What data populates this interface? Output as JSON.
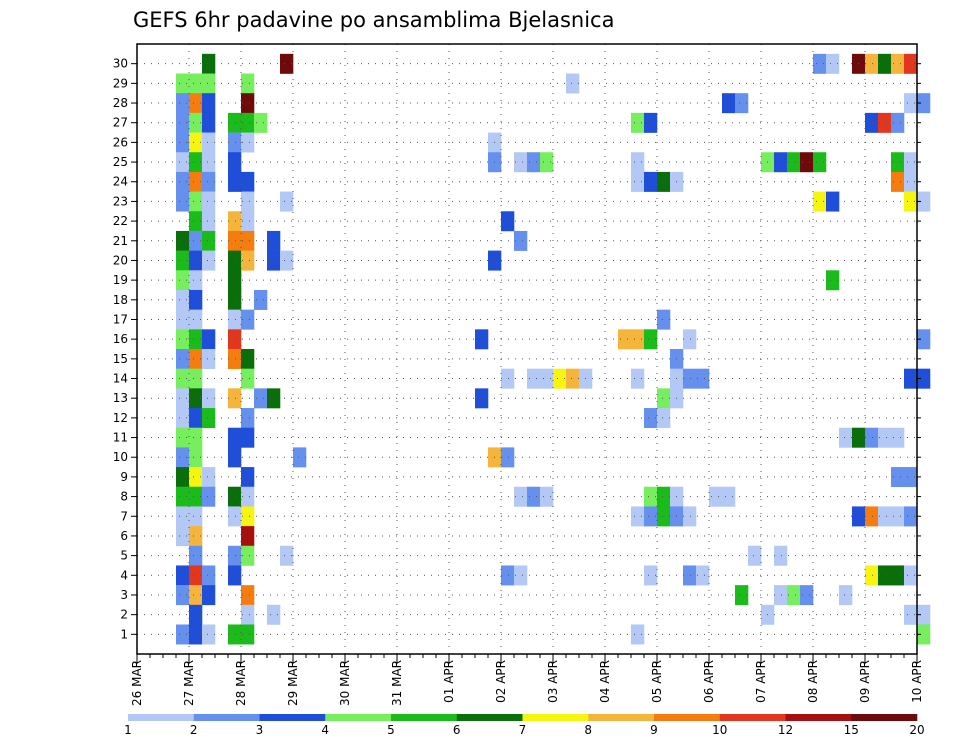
{
  "chart_data": {
    "type": "heatmap",
    "title": "GEFS 6hr padavine po ansamblima Bjelasnica",
    "y_members": [
      1,
      2,
      3,
      4,
      5,
      6,
      7,
      8,
      9,
      10,
      11,
      12,
      13,
      14,
      15,
      16,
      17,
      18,
      19,
      20,
      21,
      22,
      23,
      24,
      25,
      26,
      27,
      28,
      29,
      30
    ],
    "x_dates": [
      "26 MAR",
      "27 MAR",
      "28 MAR",
      "29 MAR",
      "30 MAR",
      "31 MAR",
      "01 APR",
      "02 APR",
      "03 APR",
      "04 APR",
      "05 APR",
      "06 APR",
      "07 APR",
      "08 APR",
      "09 APR",
      "10 APR"
    ],
    "steps_per_day": 4,
    "grid": true,
    "colorbar": {
      "ticks": [
        "1",
        "2",
        "3",
        "4",
        "5",
        "6",
        "7",
        "8",
        "9",
        "10",
        "12",
        "15",
        "20"
      ],
      "colors": [
        "#b4c8f5",
        "#6690ee",
        "#1f4fd8",
        "#76ee5e",
        "#1bbb1b",
        "#0a6e0a",
        "#f5f50f",
        "#f5b43c",
        "#f57d0f",
        "#e1371e",
        "#a50f0f",
        "#6e0a0a"
      ]
    },
    "cells": [
      {
        "m": 30,
        "s": 5,
        "l": 5
      },
      {
        "m": 30,
        "s": 11,
        "l": 11
      },
      {
        "m": 30,
        "s": 52,
        "l": 1
      },
      {
        "m": 30,
        "s": 53,
        "l": 0
      },
      {
        "m": 30,
        "s": 55,
        "l": 11
      },
      {
        "m": 30,
        "s": 56,
        "l": 7
      },
      {
        "m": 30,
        "s": 57,
        "l": 5
      },
      {
        "m": 30,
        "s": 58,
        "l": 7
      },
      {
        "m": 30,
        "s": 59,
        "l": 9
      },
      {
        "m": 29,
        "s": 3,
        "l": 3
      },
      {
        "m": 29,
        "s": 4,
        "l": 3
      },
      {
        "m": 29,
        "s": 5,
        "l": 3
      },
      {
        "m": 29,
        "s": 8,
        "l": 3
      },
      {
        "m": 29,
        "s": 33,
        "l": 0
      },
      {
        "m": 28,
        "s": 3,
        "l": 1
      },
      {
        "m": 28,
        "s": 4,
        "l": 8
      },
      {
        "m": 28,
        "s": 5,
        "l": 2
      },
      {
        "m": 28,
        "s": 8,
        "l": 11
      },
      {
        "m": 28,
        "s": 45,
        "l": 2
      },
      {
        "m": 28,
        "s": 46,
        "l": 1
      },
      {
        "m": 28,
        "s": 59,
        "l": 0
      },
      {
        "m": 28,
        "s": 60,
        "l": 1
      },
      {
        "m": 27,
        "s": 3,
        "l": 1
      },
      {
        "m": 27,
        "s": 4,
        "l": 3
      },
      {
        "m": 27,
        "s": 5,
        "l": 2
      },
      {
        "m": 27,
        "s": 7,
        "l": 4
      },
      {
        "m": 27,
        "s": 8,
        "l": 4
      },
      {
        "m": 27,
        "s": 9,
        "l": 3
      },
      {
        "m": 27,
        "s": 38,
        "l": 3
      },
      {
        "m": 27,
        "s": 39,
        "l": 2
      },
      {
        "m": 27,
        "s": 56,
        "l": 2
      },
      {
        "m": 27,
        "s": 57,
        "l": 9
      },
      {
        "m": 27,
        "s": 58,
        "l": 1
      },
      {
        "m": 26,
        "s": 3,
        "l": 1
      },
      {
        "m": 26,
        "s": 4,
        "l": 6
      },
      {
        "m": 26,
        "s": 5,
        "l": 0
      },
      {
        "m": 26,
        "s": 7,
        "l": 1
      },
      {
        "m": 26,
        "s": 8,
        "l": 0
      },
      {
        "m": 26,
        "s": 27,
        "l": 0
      },
      {
        "m": 25,
        "s": 3,
        "l": 0
      },
      {
        "m": 25,
        "s": 4,
        "l": 4
      },
      {
        "m": 25,
        "s": 5,
        "l": 0
      },
      {
        "m": 25,
        "s": 7,
        "l": 2
      },
      {
        "m": 25,
        "s": 27,
        "l": 1
      },
      {
        "m": 25,
        "s": 29,
        "l": 0
      },
      {
        "m": 25,
        "s": 30,
        "l": 1
      },
      {
        "m": 25,
        "s": 31,
        "l": 3
      },
      {
        "m": 25,
        "s": 38,
        "l": 0
      },
      {
        "m": 25,
        "s": 48,
        "l": 3
      },
      {
        "m": 25,
        "s": 49,
        "l": 2
      },
      {
        "m": 25,
        "s": 50,
        "l": 4
      },
      {
        "m": 25,
        "s": 51,
        "l": 11
      },
      {
        "m": 25,
        "s": 52,
        "l": 4
      },
      {
        "m": 25,
        "s": 58,
        "l": 4
      },
      {
        "m": 25,
        "s": 59,
        "l": 0
      },
      {
        "m": 24,
        "s": 3,
        "l": 1
      },
      {
        "m": 24,
        "s": 4,
        "l": 8
      },
      {
        "m": 24,
        "s": 5,
        "l": 1
      },
      {
        "m": 24,
        "s": 7,
        "l": 2
      },
      {
        "m": 24,
        "s": 8,
        "l": 2
      },
      {
        "m": 24,
        "s": 38,
        "l": 0
      },
      {
        "m": 24,
        "s": 39,
        "l": 2
      },
      {
        "m": 24,
        "s": 40,
        "l": 5
      },
      {
        "m": 24,
        "s": 41,
        "l": 0
      },
      {
        "m": 24,
        "s": 58,
        "l": 8
      },
      {
        "m": 24,
        "s": 59,
        "l": 0
      },
      {
        "m": 23,
        "s": 3,
        "l": 1
      },
      {
        "m": 23,
        "s": 4,
        "l": 3
      },
      {
        "m": 23,
        "s": 5,
        "l": 0
      },
      {
        "m": 23,
        "s": 8,
        "l": 0
      },
      {
        "m": 23,
        "s": 11,
        "l": 0
      },
      {
        "m": 23,
        "s": 52,
        "l": 6
      },
      {
        "m": 23,
        "s": 53,
        "l": 2
      },
      {
        "m": 23,
        "s": 59,
        "l": 6
      },
      {
        "m": 23,
        "s": 60,
        "l": 0
      },
      {
        "m": 22,
        "s": 4,
        "l": 4
      },
      {
        "m": 22,
        "s": 5,
        "l": 0
      },
      {
        "m": 22,
        "s": 7,
        "l": 7
      },
      {
        "m": 22,
        "s": 8,
        "l": 0
      },
      {
        "m": 22,
        "s": 28,
        "l": 2
      },
      {
        "m": 21,
        "s": 3,
        "l": 5
      },
      {
        "m": 21,
        "s": 4,
        "l": 1
      },
      {
        "m": 21,
        "s": 5,
        "l": 4
      },
      {
        "m": 21,
        "s": 7,
        "l": 8
      },
      {
        "m": 21,
        "s": 8,
        "l": 8
      },
      {
        "m": 21,
        "s": 10,
        "l": 2
      },
      {
        "m": 21,
        "s": 29,
        "l": 1
      },
      {
        "m": 20,
        "s": 3,
        "l": 4
      },
      {
        "m": 20,
        "s": 4,
        "l": 2
      },
      {
        "m": 20,
        "s": 5,
        "l": 0
      },
      {
        "m": 20,
        "s": 7,
        "l": 5
      },
      {
        "m": 20,
        "s": 8,
        "l": 7
      },
      {
        "m": 20,
        "s": 10,
        "l": 2
      },
      {
        "m": 20,
        "s": 11,
        "l": 0
      },
      {
        "m": 20,
        "s": 27,
        "l": 2
      },
      {
        "m": 19,
        "s": 3,
        "l": 3
      },
      {
        "m": 19,
        "s": 4,
        "l": 0
      },
      {
        "m": 19,
        "s": 7,
        "l": 5
      },
      {
        "m": 19,
        "s": 53,
        "l": 4
      },
      {
        "m": 18,
        "s": 3,
        "l": 0
      },
      {
        "m": 18,
        "s": 4,
        "l": 2
      },
      {
        "m": 18,
        "s": 7,
        "l": 5
      },
      {
        "m": 18,
        "s": 9,
        "l": 1
      },
      {
        "m": 17,
        "s": 3,
        "l": 0
      },
      {
        "m": 17,
        "s": 4,
        "l": 0
      },
      {
        "m": 17,
        "s": 7,
        "l": 0
      },
      {
        "m": 17,
        "s": 8,
        "l": 1
      },
      {
        "m": 17,
        "s": 40,
        "l": 1
      },
      {
        "m": 16,
        "s": 3,
        "l": 3
      },
      {
        "m": 16,
        "s": 4,
        "l": 4
      },
      {
        "m": 16,
        "s": 5,
        "l": 2
      },
      {
        "m": 16,
        "s": 7,
        "l": 9
      },
      {
        "m": 16,
        "s": 26,
        "l": 2
      },
      {
        "m": 16,
        "s": 37,
        "l": 7
      },
      {
        "m": 16,
        "s": 38,
        "l": 7
      },
      {
        "m": 16,
        "s": 39,
        "l": 4
      },
      {
        "m": 16,
        "s": 42,
        "l": 0
      },
      {
        "m": 16,
        "s": 60,
        "l": 1
      },
      {
        "m": 15,
        "s": 3,
        "l": 1
      },
      {
        "m": 15,
        "s": 4,
        "l": 8
      },
      {
        "m": 15,
        "s": 5,
        "l": 0
      },
      {
        "m": 15,
        "s": 7,
        "l": 8
      },
      {
        "m": 15,
        "s": 8,
        "l": 5
      },
      {
        "m": 15,
        "s": 41,
        "l": 1
      },
      {
        "m": 14,
        "s": 3,
        "l": 3
      },
      {
        "m": 14,
        "s": 4,
        "l": 3
      },
      {
        "m": 14,
        "s": 8,
        "l": 3
      },
      {
        "m": 14,
        "s": 28,
        "l": 0
      },
      {
        "m": 14,
        "s": 30,
        "l": 0
      },
      {
        "m": 14,
        "s": 31,
        "l": 0
      },
      {
        "m": 14,
        "s": 32,
        "l": 6
      },
      {
        "m": 14,
        "s": 33,
        "l": 7
      },
      {
        "m": 14,
        "s": 34,
        "l": 0
      },
      {
        "m": 14,
        "s": 38,
        "l": 0
      },
      {
        "m": 14,
        "s": 41,
        "l": 0
      },
      {
        "m": 14,
        "s": 42,
        "l": 1
      },
      {
        "m": 14,
        "s": 43,
        "l": 1
      },
      {
        "m": 14,
        "s": 59,
        "l": 2
      },
      {
        "m": 14,
        "s": 60,
        "l": 2
      },
      {
        "m": 13,
        "s": 3,
        "l": 0
      },
      {
        "m": 13,
        "s": 4,
        "l": 5
      },
      {
        "m": 13,
        "s": 5,
        "l": 0
      },
      {
        "m": 13,
        "s": 7,
        "l": 7
      },
      {
        "m": 13,
        "s": 9,
        "l": 1
      },
      {
        "m": 13,
        "s": 10,
        "l": 5
      },
      {
        "m": 13,
        "s": 26,
        "l": 2
      },
      {
        "m": 13,
        "s": 40,
        "l": 3
      },
      {
        "m": 13,
        "s": 41,
        "l": 0
      },
      {
        "m": 12,
        "s": 3,
        "l": 0
      },
      {
        "m": 12,
        "s": 4,
        "l": 2
      },
      {
        "m": 12,
        "s": 5,
        "l": 4
      },
      {
        "m": 12,
        "s": 8,
        "l": 1
      },
      {
        "m": 12,
        "s": 39,
        "l": 1
      },
      {
        "m": 12,
        "s": 40,
        "l": 0
      },
      {
        "m": 11,
        "s": 3,
        "l": 3
      },
      {
        "m": 11,
        "s": 4,
        "l": 3
      },
      {
        "m": 11,
        "s": 7,
        "l": 2
      },
      {
        "m": 11,
        "s": 8,
        "l": 2
      },
      {
        "m": 11,
        "s": 54,
        "l": 0
      },
      {
        "m": 11,
        "s": 55,
        "l": 5
      },
      {
        "m": 11,
        "s": 56,
        "l": 1
      },
      {
        "m": 11,
        "s": 57,
        "l": 0
      },
      {
        "m": 11,
        "s": 58,
        "l": 0
      },
      {
        "m": 10,
        "s": 3,
        "l": 1
      },
      {
        "m": 10,
        "s": 4,
        "l": 3
      },
      {
        "m": 10,
        "s": 7,
        "l": 2
      },
      {
        "m": 10,
        "s": 12,
        "l": 1
      },
      {
        "m": 10,
        "s": 27,
        "l": 7
      },
      {
        "m": 10,
        "s": 28,
        "l": 1
      },
      {
        "m": 9,
        "s": 3,
        "l": 5
      },
      {
        "m": 9,
        "s": 4,
        "l": 6
      },
      {
        "m": 9,
        "s": 5,
        "l": 0
      },
      {
        "m": 9,
        "s": 8,
        "l": 2
      },
      {
        "m": 9,
        "s": 58,
        "l": 1
      },
      {
        "m": 9,
        "s": 59,
        "l": 1
      },
      {
        "m": 8,
        "s": 3,
        "l": 4
      },
      {
        "m": 8,
        "s": 4,
        "l": 4
      },
      {
        "m": 8,
        "s": 5,
        "l": 1
      },
      {
        "m": 8,
        "s": 7,
        "l": 5
      },
      {
        "m": 8,
        "s": 8,
        "l": 0
      },
      {
        "m": 8,
        "s": 29,
        "l": 0
      },
      {
        "m": 8,
        "s": 30,
        "l": 1
      },
      {
        "m": 8,
        "s": 31,
        "l": 0
      },
      {
        "m": 8,
        "s": 39,
        "l": 3
      },
      {
        "m": 8,
        "s": 40,
        "l": 4
      },
      {
        "m": 8,
        "s": 41,
        "l": 0
      },
      {
        "m": 8,
        "s": 44,
        "l": 0
      },
      {
        "m": 8,
        "s": 45,
        "l": 0
      },
      {
        "m": 7,
        "s": 3,
        "l": 0
      },
      {
        "m": 7,
        "s": 4,
        "l": 0
      },
      {
        "m": 7,
        "s": 7,
        "l": 0
      },
      {
        "m": 7,
        "s": 8,
        "l": 6
      },
      {
        "m": 7,
        "s": 38,
        "l": 0
      },
      {
        "m": 7,
        "s": 39,
        "l": 1
      },
      {
        "m": 7,
        "s": 40,
        "l": 4
      },
      {
        "m": 7,
        "s": 41,
        "l": 1
      },
      {
        "m": 7,
        "s": 42,
        "l": 0
      },
      {
        "m": 7,
        "s": 55,
        "l": 2
      },
      {
        "m": 7,
        "s": 56,
        "l": 8
      },
      {
        "m": 7,
        "s": 57,
        "l": 0
      },
      {
        "m": 7,
        "s": 58,
        "l": 0
      },
      {
        "m": 7,
        "s": 59,
        "l": 1
      },
      {
        "m": 6,
        "s": 3,
        "l": 0
      },
      {
        "m": 6,
        "s": 4,
        "l": 7
      },
      {
        "m": 6,
        "s": 8,
        "l": 10
      },
      {
        "m": 5,
        "s": 4,
        "l": 1
      },
      {
        "m": 5,
        "s": 7,
        "l": 1
      },
      {
        "m": 5,
        "s": 8,
        "l": 3
      },
      {
        "m": 5,
        "s": 11,
        "l": 0
      },
      {
        "m": 5,
        "s": 47,
        "l": 0
      },
      {
        "m": 5,
        "s": 49,
        "l": 0
      },
      {
        "m": 4,
        "s": 3,
        "l": 2
      },
      {
        "m": 4,
        "s": 4,
        "l": 9
      },
      {
        "m": 4,
        "s": 5,
        "l": 1
      },
      {
        "m": 4,
        "s": 7,
        "l": 2
      },
      {
        "m": 4,
        "s": 28,
        "l": 1
      },
      {
        "m": 4,
        "s": 29,
        "l": 0
      },
      {
        "m": 4,
        "s": 39,
        "l": 0
      },
      {
        "m": 4,
        "s": 42,
        "l": 1
      },
      {
        "m": 4,
        "s": 43,
        "l": 0
      },
      {
        "m": 4,
        "s": 56,
        "l": 6
      },
      {
        "m": 4,
        "s": 57,
        "l": 5
      },
      {
        "m": 4,
        "s": 58,
        "l": 5
      },
      {
        "m": 4,
        "s": 59,
        "l": 0
      },
      {
        "m": 3,
        "s": 3,
        "l": 1
      },
      {
        "m": 3,
        "s": 4,
        "l": 7
      },
      {
        "m": 3,
        "s": 5,
        "l": 2
      },
      {
        "m": 3,
        "s": 8,
        "l": 8
      },
      {
        "m": 3,
        "s": 46,
        "l": 4
      },
      {
        "m": 3,
        "s": 49,
        "l": 0
      },
      {
        "m": 3,
        "s": 50,
        "l": 3
      },
      {
        "m": 3,
        "s": 51,
        "l": 1
      },
      {
        "m": 3,
        "s": 54,
        "l": 0
      },
      {
        "m": 2,
        "s": 4,
        "l": 2
      },
      {
        "m": 2,
        "s": 8,
        "l": 0
      },
      {
        "m": 2,
        "s": 10,
        "l": 0
      },
      {
        "m": 2,
        "s": 48,
        "l": 0
      },
      {
        "m": 2,
        "s": 59,
        "l": 0
      },
      {
        "m": 2,
        "s": 60,
        "l": 0
      },
      {
        "m": 1,
        "s": 3,
        "l": 1
      },
      {
        "m": 1,
        "s": 4,
        "l": 2
      },
      {
        "m": 1,
        "s": 5,
        "l": 0
      },
      {
        "m": 1,
        "s": 7,
        "l": 4
      },
      {
        "m": 1,
        "s": 8,
        "l": 4
      },
      {
        "m": 1,
        "s": 38,
        "l": 0
      },
      {
        "m": 1,
        "s": 60,
        "l": 3
      }
    ]
  }
}
